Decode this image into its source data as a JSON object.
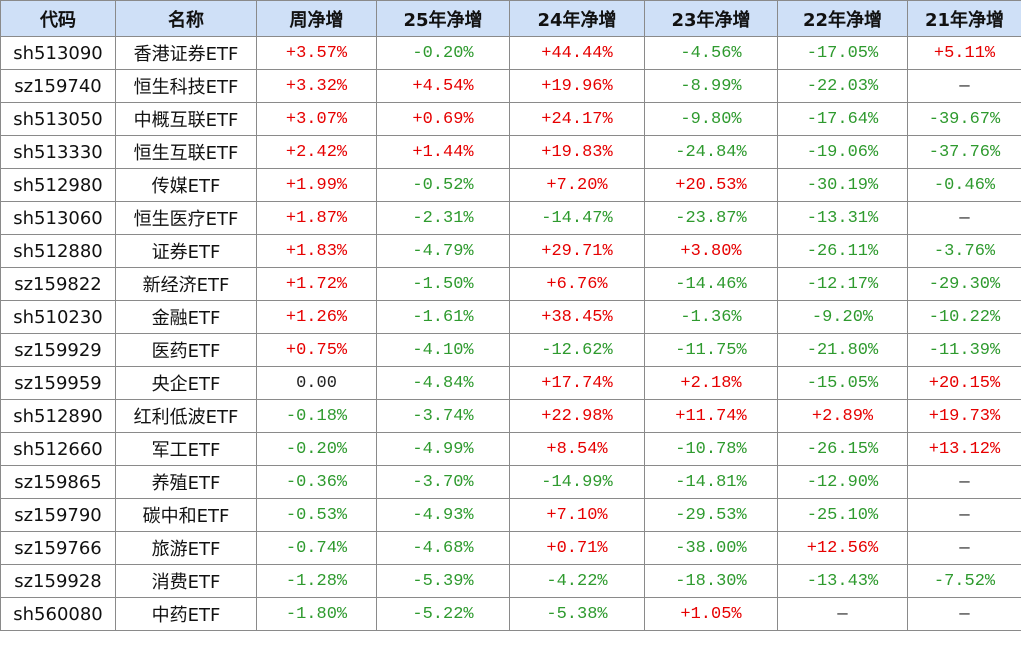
{
  "table": {
    "headers": [
      "代码",
      "名称",
      "周净增",
      "25年净增",
      "24年净增",
      "23年净增",
      "22年净增",
      "21年净增"
    ],
    "rows": [
      {
        "code": "sh513090",
        "name": "香港证券ETF",
        "values": [
          "+3.57%",
          "-0.20%",
          "+44.44%",
          "-4.56%",
          "-17.05%",
          "+5.11%"
        ]
      },
      {
        "code": "sz159740",
        "name": "恒生科技ETF",
        "values": [
          "+3.32%",
          "+4.54%",
          "+19.96%",
          "-8.99%",
          "-22.03%",
          "—"
        ]
      },
      {
        "code": "sh513050",
        "name": "中概互联ETF",
        "values": [
          "+3.07%",
          "+0.69%",
          "+24.17%",
          "-9.80%",
          "-17.64%",
          "-39.67%"
        ]
      },
      {
        "code": "sh513330",
        "name": "恒生互联ETF",
        "values": [
          "+2.42%",
          "+1.44%",
          "+19.83%",
          "-24.84%",
          "-19.06%",
          "-37.76%"
        ]
      },
      {
        "code": "sh512980",
        "name": "传媒ETF",
        "values": [
          "+1.99%",
          "-0.52%",
          "+7.20%",
          "+20.53%",
          "-30.19%",
          "-0.46%"
        ]
      },
      {
        "code": "sh513060",
        "name": "恒生医疗ETF",
        "values": [
          "+1.87%",
          "-2.31%",
          "-14.47%",
          "-23.87%",
          "-13.31%",
          "—"
        ]
      },
      {
        "code": "sh512880",
        "name": "证券ETF",
        "values": [
          "+1.83%",
          "-4.79%",
          "+29.71%",
          "+3.80%",
          "-26.11%",
          "-3.76%"
        ]
      },
      {
        "code": "sz159822",
        "name": "新经济ETF",
        "values": [
          "+1.72%",
          "-1.50%",
          "+6.76%",
          "-14.46%",
          "-12.17%",
          "-29.30%"
        ]
      },
      {
        "code": "sh510230",
        "name": "金融ETF",
        "values": [
          "+1.26%",
          "-1.61%",
          "+38.45%",
          "-1.36%",
          "-9.20%",
          "-10.22%"
        ]
      },
      {
        "code": "sz159929",
        "name": "医药ETF",
        "values": [
          "+0.75%",
          "-4.10%",
          "-12.62%",
          "-11.75%",
          "-21.80%",
          "-11.39%"
        ]
      },
      {
        "code": "sz159959",
        "name": "央企ETF",
        "values": [
          "0.00",
          "-4.84%",
          "+17.74%",
          "+2.18%",
          "-15.05%",
          "+20.15%"
        ]
      },
      {
        "code": "sh512890",
        "name": "红利低波ETF",
        "values": [
          "-0.18%",
          "-3.74%",
          "+22.98%",
          "+11.74%",
          "+2.89%",
          "+19.73%"
        ]
      },
      {
        "code": "sh512660",
        "name": "军工ETF",
        "values": [
          "-0.20%",
          "-4.99%",
          "+8.54%",
          "-10.78%",
          "-26.15%",
          "+13.12%"
        ]
      },
      {
        "code": "sz159865",
        "name": "养殖ETF",
        "values": [
          "-0.36%",
          "-3.70%",
          "-14.99%",
          "-14.81%",
          "-12.90%",
          "—"
        ]
      },
      {
        "code": "sz159790",
        "name": "碳中和ETF",
        "values": [
          "-0.53%",
          "-4.93%",
          "+7.10%",
          "-29.53%",
          "-25.10%",
          "—"
        ]
      },
      {
        "code": "sz159766",
        "name": "旅游ETF",
        "values": [
          "-0.74%",
          "-4.68%",
          "+0.71%",
          "-38.00%",
          "+12.56%",
          "—"
        ]
      },
      {
        "code": "sz159928",
        "name": "消费ETF",
        "values": [
          "-1.28%",
          "-5.39%",
          "-4.22%",
          "-18.30%",
          "-13.43%",
          "-7.52%"
        ]
      },
      {
        "code": "sh560080",
        "name": "中药ETF",
        "values": [
          "-1.80%",
          "-5.22%",
          "-5.38%",
          "+1.05%",
          "—",
          "—"
        ]
      }
    ]
  },
  "colors": {
    "header_bg": "#cfe0f7",
    "positive": "#e60000",
    "negative": "#2e9a2e",
    "border": "#8a8a8a"
  }
}
